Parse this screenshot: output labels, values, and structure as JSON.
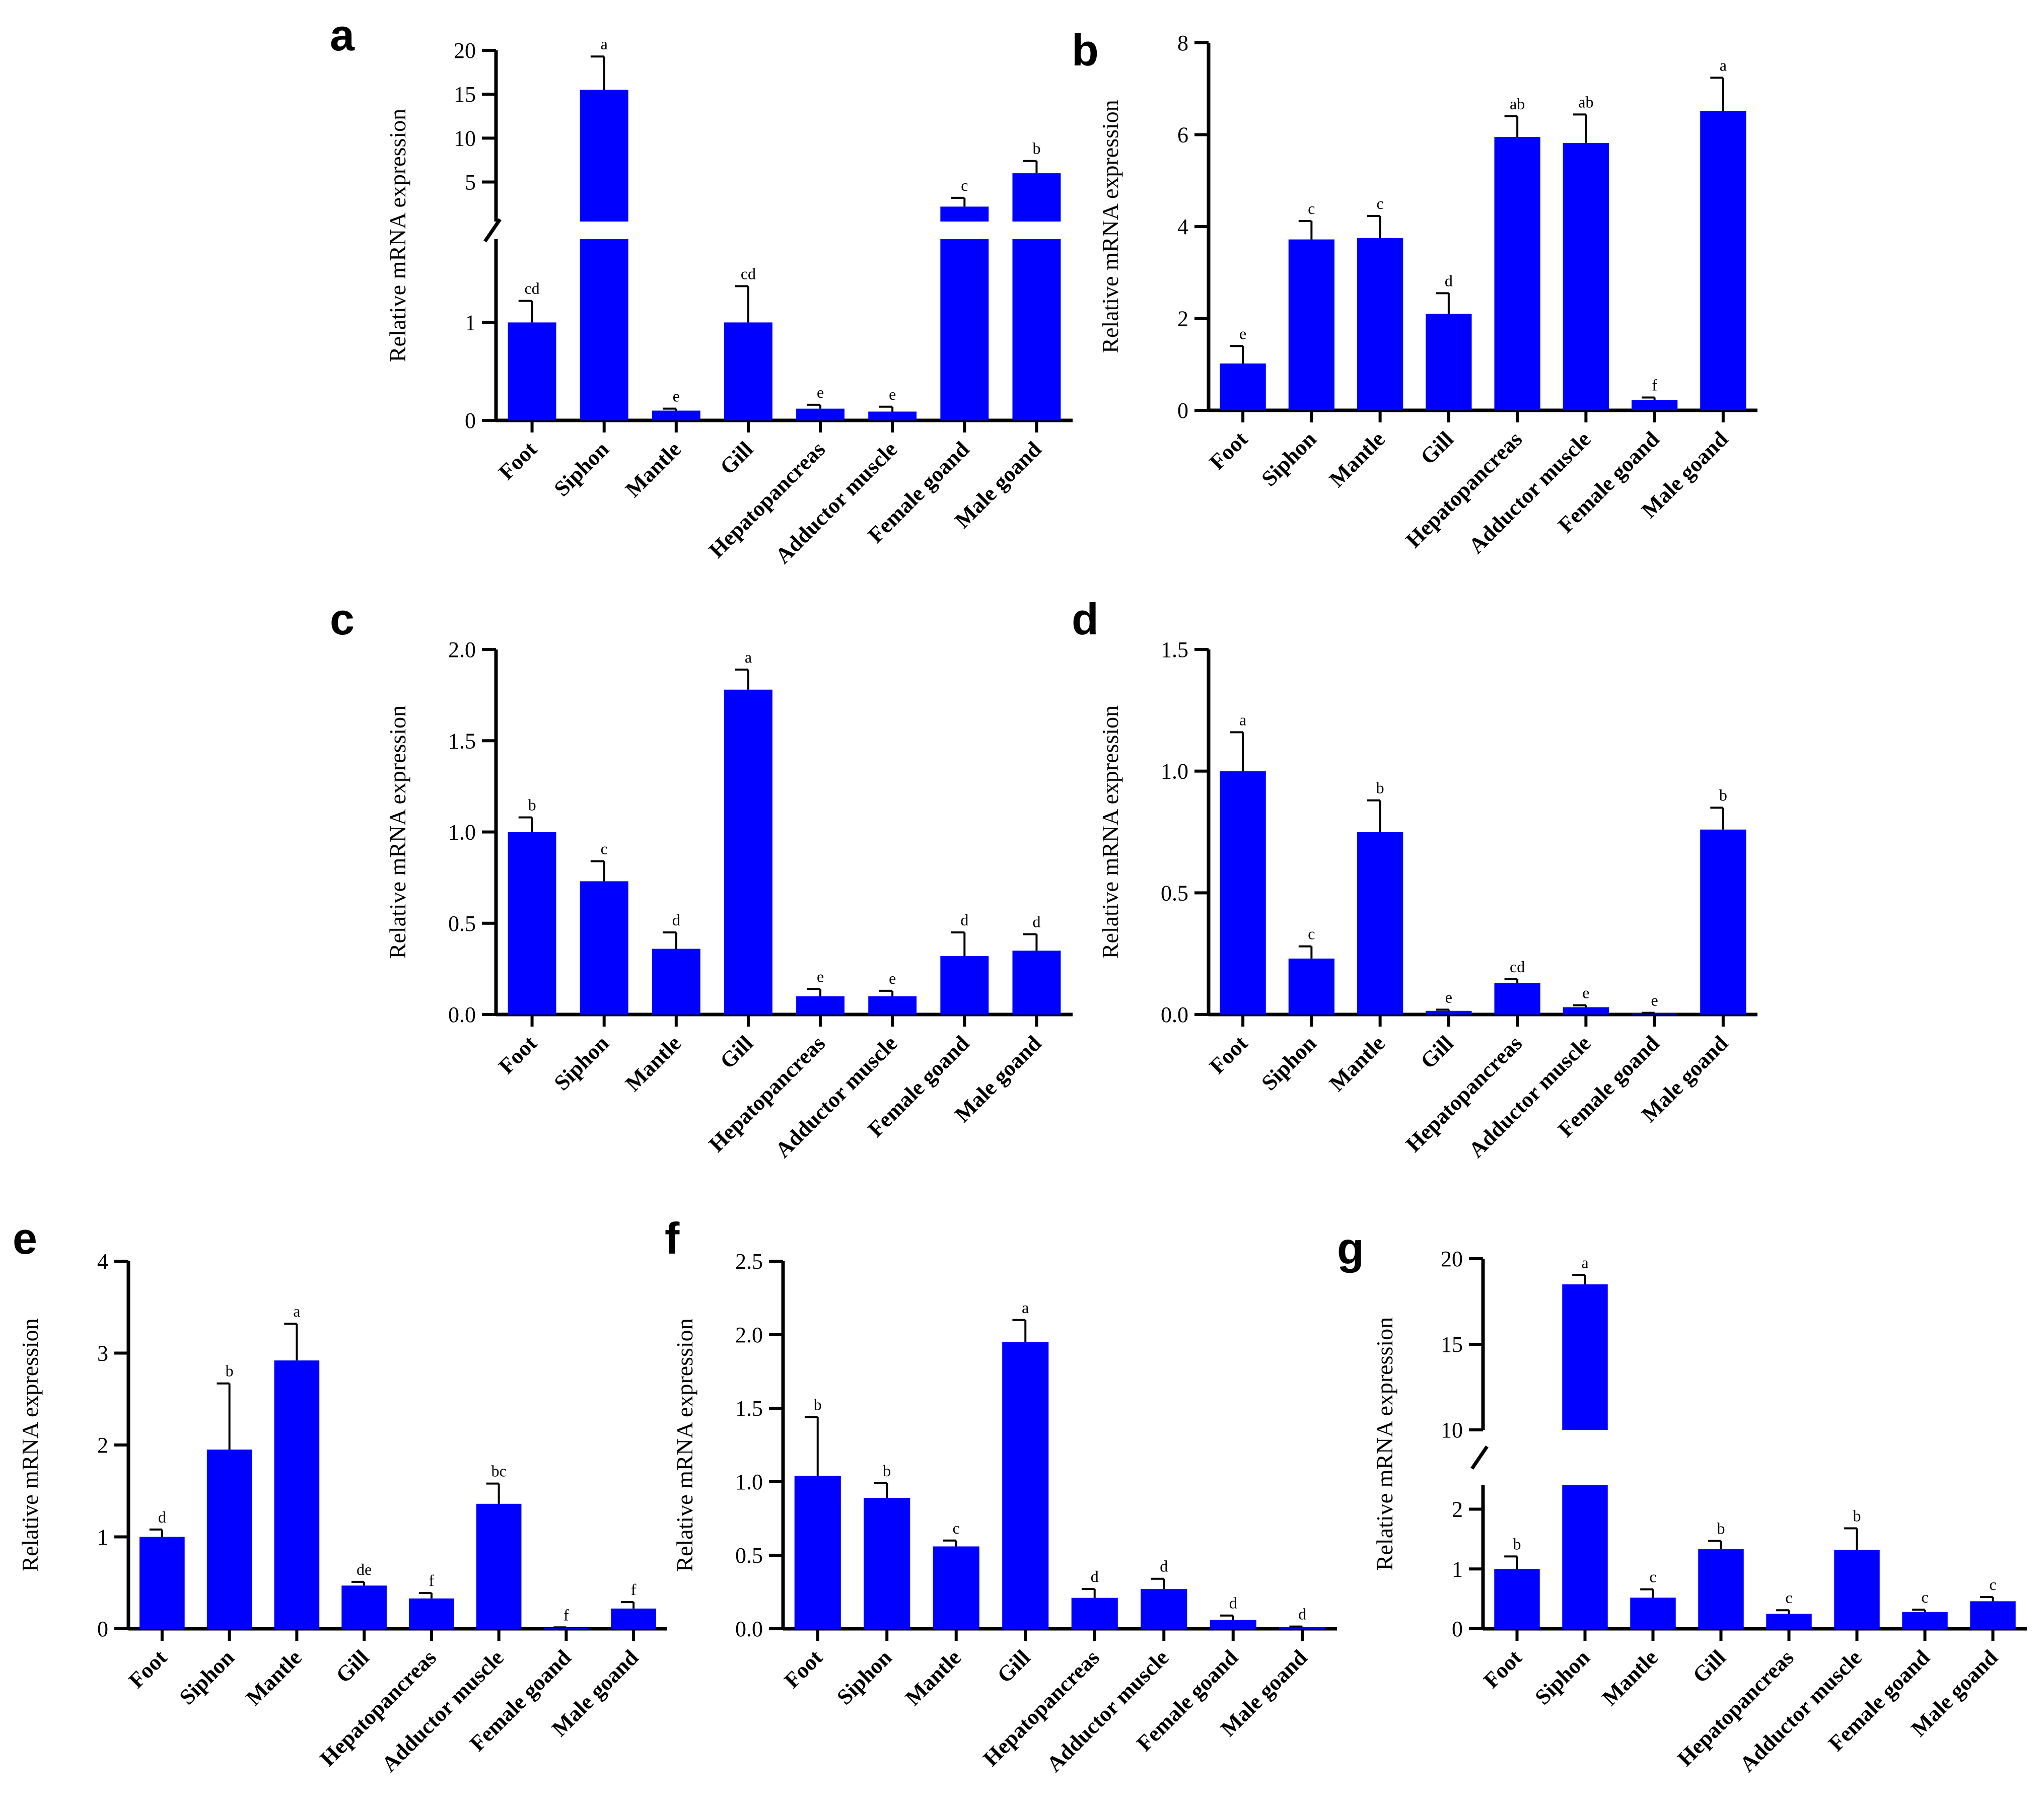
{
  "figure": {
    "ylabel": "Relative mRNA expression",
    "bar_color": "#0000FF"
  },
  "chart_data": [
    {
      "panel": "a",
      "type": "bar",
      "ylabel": "Relative mRNA expression",
      "categories": [
        "Foot",
        "Siphon",
        "Mantle",
        "Gill",
        "Hepatopancreas",
        "Adductor muscle",
        "Female goand",
        "Male goand"
      ],
      "values": [
        1.0,
        15.5,
        0.1,
        1.0,
        0.12,
        0.09,
        2.2,
        6.0
      ],
      "errors": [
        0.22,
        3.8,
        0.02,
        0.37,
        0.04,
        0.05,
        1.0,
        1.4
      ],
      "letters": [
        "cd",
        "a",
        "e",
        "cd",
        "e",
        "e",
        "c",
        "b"
      ],
      "axis_break": {
        "lower": [
          0,
          1.85
        ],
        "upper": [
          0.5,
          20
        ]
      },
      "ticks_lower": [
        "0",
        "1"
      ],
      "tick_values_lower": [
        0,
        1
      ],
      "ticks_upper": [
        "5",
        "10",
        "15",
        "20"
      ],
      "tick_values_upper": [
        5,
        10,
        15,
        20
      ]
    },
    {
      "panel": "b",
      "type": "bar",
      "ylabel": "Relative mRNA expression",
      "categories": [
        "Foot",
        "Siphon",
        "Mantle",
        "Gill",
        "Hepatopancreas",
        "Adductor muscle",
        "Female goand",
        "Male goand"
      ],
      "values": [
        1.02,
        3.72,
        3.75,
        2.1,
        5.95,
        5.82,
        0.22,
        6.52
      ],
      "errors": [
        0.38,
        0.4,
        0.48,
        0.45,
        0.45,
        0.62,
        0.06,
        0.72
      ],
      "letters": [
        "e",
        "c",
        "c",
        "d",
        "ab",
        "ab",
        "f",
        "a"
      ],
      "ylim": [
        0,
        8
      ],
      "ticks": [
        "0",
        "2",
        "4",
        "6",
        "8"
      ],
      "tick_values": [
        0,
        2,
        4,
        6,
        8
      ]
    },
    {
      "panel": "c",
      "type": "bar",
      "ylabel": "Relative mRNA expression",
      "categories": [
        "Foot",
        "Siphon",
        "Mantle",
        "Gill",
        "Hepatopancreas",
        "Adductor muscle",
        "Female goand",
        "Male goand"
      ],
      "values": [
        1.0,
        0.73,
        0.36,
        1.78,
        0.1,
        0.1,
        0.32,
        0.35
      ],
      "errors": [
        0.08,
        0.11,
        0.09,
        0.11,
        0.04,
        0.03,
        0.13,
        0.09
      ],
      "letters": [
        "b",
        "c",
        "d",
        "a",
        "e",
        "e",
        "d",
        "d"
      ],
      "ylim": [
        0,
        2.0
      ],
      "ticks": [
        "0.0",
        "0.5",
        "1.0",
        "1.5",
        "2.0"
      ],
      "tick_values": [
        0,
        0.5,
        1.0,
        1.5,
        2.0
      ]
    },
    {
      "panel": "d",
      "type": "bar",
      "ylabel": "Relative mRNA expression",
      "categories": [
        "Foot",
        "Siphon",
        "Mantle",
        "Gill",
        "Hepatopancreas",
        "Adductor muscle",
        "Female goand",
        "Male goand"
      ],
      "values": [
        1.0,
        0.23,
        0.75,
        0.015,
        0.13,
        0.03,
        0.005,
        0.76
      ],
      "errors": [
        0.16,
        0.05,
        0.13,
        0.005,
        0.015,
        0.008,
        0.002,
        0.09
      ],
      "letters": [
        "a",
        "c",
        "b",
        "e",
        "cd",
        "e",
        "e",
        "b"
      ],
      "ylim": [
        0,
        1.5
      ],
      "ticks": [
        "0.0",
        "0.5",
        "1.0",
        "1.5"
      ],
      "tick_values": [
        0,
        0.5,
        1.0,
        1.5
      ]
    },
    {
      "panel": "e",
      "type": "bar",
      "ylabel": "Relative mRNA expression",
      "categories": [
        "Foot",
        "Siphon",
        "Mantle",
        "Gill",
        "Hepatopancreas",
        "Adductor muscle",
        "Female goand",
        "Male goand"
      ],
      "values": [
        1.0,
        1.95,
        2.92,
        0.47,
        0.33,
        1.36,
        0.01,
        0.22
      ],
      "errors": [
        0.08,
        0.72,
        0.4,
        0.04,
        0.06,
        0.22,
        0.005,
        0.07
      ],
      "letters": [
        "d",
        "b",
        "a",
        "de",
        "f",
        "bc",
        "f",
        "f"
      ],
      "ylim": [
        0,
        4
      ],
      "ticks": [
        "0",
        "1",
        "2",
        "3",
        "4"
      ],
      "tick_values": [
        0,
        1,
        2,
        3,
        4
      ]
    },
    {
      "panel": "f",
      "type": "bar",
      "ylabel": "Relative mRNA expression",
      "categories": [
        "Foot",
        "Siphon",
        "Mantle",
        "Gill",
        "Hepatopancreas",
        "Adductor muscle",
        "Female goand",
        "Male goand"
      ],
      "values": [
        1.04,
        0.89,
        0.56,
        1.95,
        0.21,
        0.27,
        0.06,
        0.01
      ],
      "errors": [
        0.4,
        0.1,
        0.04,
        0.15,
        0.06,
        0.07,
        0.03,
        0.005
      ],
      "letters": [
        "b",
        "b",
        "c",
        "a",
        "d",
        "d",
        "d",
        "d"
      ],
      "ylim": [
        0,
        2.5
      ],
      "ticks": [
        "0.0",
        "0.5",
        "1.0",
        "1.5",
        "2.0",
        "2.5"
      ],
      "tick_values": [
        0,
        0.5,
        1.0,
        1.5,
        2.0,
        2.5
      ]
    },
    {
      "panel": "g",
      "type": "bar",
      "ylabel": "Relative mRNA expression",
      "categories": [
        "Foot",
        "Siphon",
        "Mantle",
        "Gill",
        "Hepatopancreas",
        "Adductor muscle",
        "Female goand",
        "Male goand"
      ],
      "values": [
        1.0,
        18.5,
        0.52,
        1.33,
        0.25,
        1.32,
        0.28,
        0.46
      ],
      "errors": [
        0.21,
        0.55,
        0.14,
        0.14,
        0.06,
        0.36,
        0.04,
        0.07
      ],
      "letters": [
        "b",
        "a",
        "c",
        "b",
        "c",
        "b",
        "c",
        "c"
      ],
      "axis_break": {
        "lower": [
          0,
          2.4
        ],
        "upper": [
          10,
          20
        ]
      },
      "ticks_lower": [
        "0",
        "1",
        "2"
      ],
      "tick_values_lower": [
        0,
        1,
        2
      ],
      "ticks_upper": [
        "10",
        "15",
        "20"
      ],
      "tick_values_upper": [
        10,
        15,
        20
      ]
    }
  ]
}
